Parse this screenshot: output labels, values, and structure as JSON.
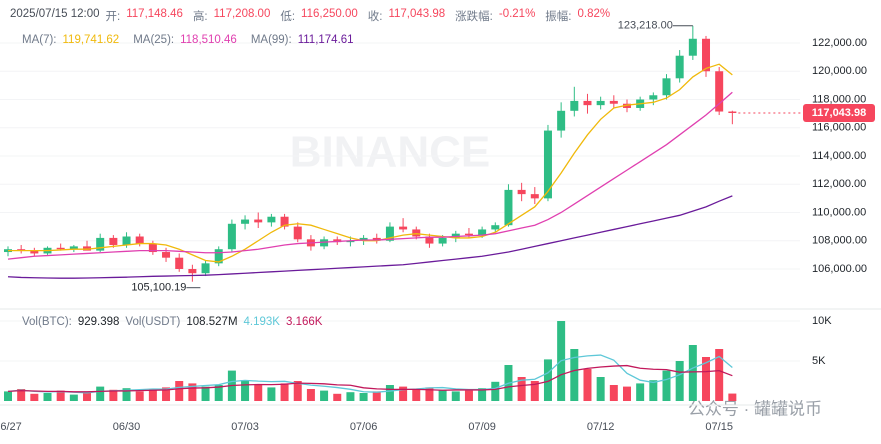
{
  "header": {
    "time": "2025/07/15 12:00",
    "fields": [
      {
        "label": "开:",
        "value": "117,148.46"
      },
      {
        "label": "高:",
        "value": "117,208.00"
      },
      {
        "label": "低:",
        "value": "116,250.00"
      },
      {
        "label": "收:",
        "value": "117,043.98"
      },
      {
        "label": "涨跌幅:",
        "value": "-0.21%"
      },
      {
        "label": "振幅:",
        "value": "0.82%"
      }
    ]
  },
  "watermark": "BINANCE",
  "footer_watermark": "公众号 · 罐罐说币",
  "chart_data": {
    "type": "candlestick",
    "categories": [
      "06/27",
      null,
      null,
      null,
      null,
      null,
      null,
      null,
      null,
      "06/30",
      null,
      null,
      null,
      null,
      null,
      null,
      null,
      null,
      "07/03",
      null,
      null,
      null,
      null,
      null,
      null,
      null,
      null,
      "07/06",
      null,
      null,
      null,
      null,
      null,
      null,
      null,
      null,
      "07/09",
      null,
      null,
      null,
      null,
      null,
      null,
      null,
      null,
      "07/12",
      null,
      null,
      null,
      null,
      null,
      null,
      null,
      null,
      "07/15",
      null
    ],
    "ohlc": [
      [
        107200,
        107600,
        106900,
        107400
      ],
      [
        107400,
        107700,
        107100,
        107300
      ],
      [
        107300,
        107500,
        106900,
        107100
      ],
      [
        107100,
        107600,
        107000,
        107500
      ],
      [
        107500,
        107800,
        107300,
        107400
      ],
      [
        107400,
        107700,
        107200,
        107600
      ],
      [
        107600,
        108000,
        107400,
        107300
      ],
      [
        107300,
        108500,
        107200,
        108200
      ],
      [
        108200,
        108400,
        107500,
        107700
      ],
      [
        107700,
        108600,
        107500,
        108300
      ],
      [
        108300,
        108500,
        107600,
        107800
      ],
      [
        107800,
        108000,
        107000,
        107200
      ],
      [
        107200,
        107500,
        106500,
        106800
      ],
      [
        106800,
        107100,
        105800,
        106000
      ],
      [
        106000,
        106300,
        105100.19,
        105700
      ],
      [
        105700,
        106600,
        105500,
        106400
      ],
      [
        106400,
        107600,
        106200,
        107400
      ],
      [
        107400,
        109500,
        107200,
        109200
      ],
      [
        109200,
        109800,
        108800,
        109500
      ],
      [
        109500,
        110000,
        108900,
        109300
      ],
      [
        109300,
        109900,
        109000,
        109700
      ],
      [
        109700,
        109900,
        108800,
        109000
      ],
      [
        109000,
        109300,
        107900,
        108100
      ],
      [
        108100,
        108400,
        107300,
        107600
      ],
      [
        107600,
        108300,
        107400,
        108100
      ],
      [
        108100,
        108300,
        107700,
        107900
      ],
      [
        107900,
        108300,
        107600,
        108000
      ],
      [
        108000,
        108400,
        107700,
        108200
      ],
      [
        108200,
        108500,
        107800,
        108000
      ],
      [
        108000,
        109300,
        107900,
        109000
      ],
      [
        109000,
        109600,
        108600,
        108800
      ],
      [
        108800,
        109000,
        108100,
        108300
      ],
      [
        108300,
        108500,
        107500,
        107800
      ],
      [
        107800,
        108400,
        107600,
        108200
      ],
      [
        108200,
        108700,
        107900,
        108500
      ],
      [
        108500,
        108900,
        108200,
        108400
      ],
      [
        108400,
        109000,
        108200,
        108800
      ],
      [
        108800,
        109300,
        108600,
        109100
      ],
      [
        109100,
        112000,
        109000,
        111600
      ],
      [
        111600,
        112100,
        110800,
        111300
      ],
      [
        111300,
        111800,
        110600,
        111000
      ],
      [
        111000,
        116200,
        110800,
        115800
      ],
      [
        115800,
        117800,
        115300,
        117200
      ],
      [
        117200,
        118900,
        116800,
        117900
      ],
      [
        117900,
        118400,
        117000,
        117600
      ],
      [
        117600,
        118200,
        117300,
        117900
      ],
      [
        117900,
        118300,
        117400,
        117700
      ],
      [
        117700,
        118000,
        117100,
        117400
      ],
      [
        117400,
        118200,
        117200,
        118000
      ],
      [
        118000,
        118500,
        117600,
        118300
      ],
      [
        118300,
        119800,
        118000,
        119500
      ],
      [
        119500,
        121500,
        119200,
        121100
      ],
      [
        121100,
        123218,
        120800,
        122300
      ],
      [
        122300,
        122500,
        119600,
        120000
      ],
      [
        120000,
        120300,
        116900,
        117148.46
      ],
      [
        117148.46,
        117208,
        116250,
        117043.98
      ]
    ],
    "up_color": "#2ebd85",
    "down_color": "#f6465d",
    "series": [
      {
        "name": "MA(7):",
        "legend_value": "119,741.62",
        "color": "#f0b90b",
        "values": [
          107300,
          107300,
          107300,
          107300,
          107350,
          107400,
          107400,
          107500,
          107600,
          107700,
          107800,
          107800,
          107700,
          107400,
          107000,
          106600,
          106500,
          106900,
          107400,
          108000,
          108600,
          109100,
          109200,
          109100,
          108800,
          108500,
          108200,
          108000,
          108000,
          108200,
          108400,
          108500,
          108400,
          108300,
          108200,
          108200,
          108300,
          108600,
          109200,
          109800,
          110400,
          111500,
          112800,
          114200,
          115500,
          116600,
          117400,
          117600,
          117700,
          117800,
          118100,
          118700,
          119600,
          120200,
          120500,
          119741.62
        ]
      },
      {
        "name": "MA(25):",
        "legend_value": "118,510.46",
        "color": "#e040b0",
        "values": [
          106700,
          106800,
          106900,
          106950,
          107000,
          107050,
          107100,
          107150,
          107200,
          107250,
          107300,
          107300,
          107300,
          107250,
          107200,
          107150,
          107150,
          107200,
          107300,
          107400,
          107550,
          107700,
          107800,
          107850,
          107900,
          107950,
          108000,
          108050,
          108050,
          108100,
          108150,
          108200,
          108250,
          108250,
          108300,
          108350,
          108400,
          108500,
          108700,
          108900,
          109100,
          109500,
          110000,
          110600,
          111200,
          111800,
          112400,
          113000,
          113600,
          114200,
          114800,
          115500,
          116200,
          116900,
          117700,
          118510.46
        ]
      },
      {
        "name": "MA(99):",
        "legend_value": "111,174.61",
        "color": "#6a1b9a",
        "values": [
          105450,
          105400,
          105380,
          105360,
          105350,
          105350,
          105360,
          105380,
          105400,
          105420,
          105450,
          105480,
          105500,
          105520,
          105540,
          105560,
          105600,
          105650,
          105700,
          105750,
          105800,
          105850,
          105900,
          105950,
          106000,
          106050,
          106100,
          106150,
          106200,
          106250,
          106300,
          106400,
          106500,
          106600,
          106700,
          106800,
          106900,
          107050,
          107200,
          107400,
          107600,
          107800,
          108000,
          108200,
          108400,
          108600,
          108800,
          109000,
          109200,
          109400,
          109600,
          109800,
          110100,
          110400,
          110800,
          111174.61
        ]
      }
    ],
    "ylim": [
      103450,
      125045
    ],
    "yticks": [
      {
        "value": 106000,
        "label": "106,000.00"
      },
      {
        "value": 108000,
        "label": "108,000.00"
      },
      {
        "value": 110000,
        "label": "110,000.00"
      },
      {
        "value": 112000,
        "label": "112,000.00"
      },
      {
        "value": 114000,
        "label": "114,000.00"
      },
      {
        "value": 116000,
        "label": "116,000.00"
      },
      {
        "value": 118000,
        "label": "118,000.00"
      },
      {
        "value": 120000,
        "label": "120,000.00"
      },
      {
        "value": 122000,
        "label": "122,000.00"
      }
    ],
    "grid": true,
    "last_price": {
      "value": 117043.98,
      "label": "117,043.98"
    },
    "high_marker": {
      "value": 123218,
      "label": "123,218.00"
    },
    "low_marker": {
      "value": 105100.19,
      "label": "105,100.19"
    },
    "volume": {
      "legend": [
        {
          "name": "Vol(BTC):",
          "value": "929.398"
        },
        {
          "name": "Vol(USDT)",
          "value": "108.527M"
        }
      ],
      "values": [
        1200,
        1500,
        900,
        1000,
        1300,
        800,
        1100,
        1800,
        1400,
        1600,
        1200,
        1500,
        1700,
        2500,
        2200,
        1800,
        2000,
        3800,
        2600,
        2000,
        1700,
        2200,
        2500,
        1500,
        1300,
        900,
        1100,
        1000,
        1200,
        2000,
        1800,
        1500,
        1700,
        1400,
        1200,
        1300,
        1600,
        2400,
        4500,
        3000,
        2500,
        5200,
        10000,
        6500,
        4000,
        3000,
        2000,
        1800,
        2200,
        2600,
        3800,
        5000,
        7000,
        5500,
        6500,
        929.398
      ],
      "ylim": [
        0,
        11125
      ],
      "yticks": [
        {
          "value": 5000,
          "label": "5K"
        },
        {
          "value": 10000,
          "label": "10K"
        }
      ],
      "series": [
        {
          "legend_value": "4.193K",
          "color": "#5ec8d8",
          "values": [
            1200,
            1350,
            1200,
            1150,
            1180,
            1100,
            1020,
            1200,
            1280,
            1340,
            1420,
            1500,
            1480,
            1700,
            1820,
            1940,
            2040,
            2440,
            2580,
            2480,
            2420,
            2460,
            2200,
            1980,
            1840,
            1680,
            1460,
            1160,
            1100,
            1240,
            1420,
            1500,
            1640,
            1680,
            1520,
            1440,
            1440,
            1580,
            2220,
            2600,
            2720,
            3520,
            5040,
            5440,
            5640,
            5740,
            5100,
            3460,
            2600,
            2320,
            2680,
            3280,
            4120,
            4780,
            5560,
            4193
          ]
        },
        {
          "legend_value": "3.166K",
          "color": "#c2185b",
          "values": [
            1200,
            1300,
            1250,
            1200,
            1200,
            1150,
            1150,
            1200,
            1250,
            1260,
            1300,
            1340,
            1380,
            1530,
            1620,
            1650,
            1740,
            1940,
            2020,
            2060,
            2050,
            2090,
            2230,
            2200,
            2150,
            2020,
            1970,
            1650,
            1520,
            1460,
            1450,
            1450,
            1410,
            1340,
            1380,
            1380,
            1380,
            1450,
            1770,
            1940,
            2080,
            2450,
            3290,
            3810,
            4080,
            4250,
            4370,
            4430,
            4090,
            3970,
            3920,
            3600,
            3640,
            3670,
            3800,
            3166
          ]
        }
      ]
    }
  }
}
